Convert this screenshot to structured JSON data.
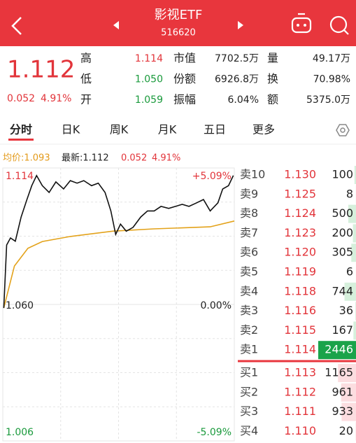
{
  "header": {
    "title": "影视ETF",
    "code": "516620"
  },
  "quote": {
    "price": "1.112",
    "change": "0.052",
    "change_pct": "4.91%",
    "stats": [
      {
        "label": "高",
        "value": "1.114"
      },
      {
        "label": "市值",
        "value": "7702.5万"
      },
      {
        "label": "量",
        "value": "49.17万"
      },
      {
        "label": "低",
        "value": "1.050"
      },
      {
        "label": "份额",
        "value": "6926.8万"
      },
      {
        "label": "换",
        "value": "70.98%"
      },
      {
        "label": "开",
        "value": "1.059"
      },
      {
        "label": "振幅",
        "value": "6.04%"
      },
      {
        "label": "额",
        "value": "5375.0万"
      }
    ]
  },
  "tabs": [
    "分时",
    "日K",
    "周K",
    "月K",
    "五日",
    "更多"
  ],
  "info": {
    "avg": "均价:1.093",
    "latest": "最新:1.112",
    "change": "0.052",
    "change_pct": "4.91%"
  },
  "intraday": {
    "type": "line",
    "xlim": [
      0,
      240
    ],
    "ylim": [
      1.006,
      1.114
    ],
    "labels": {
      "top_left": "1.114",
      "top_right": "+5.09%",
      "mid_left": "1.060",
      "mid_right": "0.00%",
      "bottom_left": "1.006",
      "bottom_right": "-5.09%"
    },
    "x": [
      1,
      4,
      8,
      13,
      19,
      25,
      30,
      35,
      41,
      48,
      55,
      63,
      70,
      77,
      84,
      92,
      99,
      106,
      112,
      117,
      122,
      128,
      135,
      143,
      150,
      157,
      164,
      172,
      179,
      186,
      193,
      201,
      208,
      215,
      223,
      228,
      234,
      239
    ],
    "price": [
      1.0586,
      1.0835,
      1.0863,
      1.085,
      1.0946,
      1.1015,
      1.107,
      1.111,
      1.107,
      1.1043,
      1.1085,
      1.1057,
      1.109,
      1.108,
      1.109,
      1.107,
      1.108,
      1.1043,
      1.097,
      1.0877,
      1.0918,
      1.089,
      1.0905,
      1.0946,
      1.097,
      1.097,
      1.0988,
      1.098,
      1.0988,
      1.0996,
      1.0988,
      1.1002,
      1.1015,
      1.097,
      1.1002,
      1.1057,
      1.107,
      1.111
    ],
    "avg_x": [
      1,
      12,
      26,
      41,
      70,
      114,
      157,
      215,
      240
    ],
    "avg": [
      1.0586,
      1.0752,
      1.0822,
      1.0849,
      1.0869,
      1.089,
      1.0899,
      1.0907,
      1.093
    ],
    "price_color": "#111111",
    "avg_color": "#e3a21a"
  },
  "order_book": {
    "asks": [
      {
        "label": "卖10",
        "price": "1.130",
        "volume": 100
      },
      {
        "label": "卖9",
        "price": "1.125",
        "volume": 8
      },
      {
        "label": "卖8",
        "price": "1.124",
        "volume": 500
      },
      {
        "label": "卖7",
        "price": "1.123",
        "volume": 200
      },
      {
        "label": "卖6",
        "price": "1.120",
        "volume": 305
      },
      {
        "label": "卖5",
        "price": "1.119",
        "volume": 6
      },
      {
        "label": "卖4",
        "price": "1.118",
        "volume": 744
      },
      {
        "label": "卖3",
        "price": "1.116",
        "volume": 36
      },
      {
        "label": "卖2",
        "price": "1.115",
        "volume": 167
      },
      {
        "label": "卖1",
        "price": "1.114",
        "volume": 2446
      }
    ],
    "bids": [
      {
        "label": "买1",
        "price": "1.113",
        "volume": 1165
      },
      {
        "label": "买2",
        "price": "1.112",
        "volume": 961
      },
      {
        "label": "买3",
        "price": "1.111",
        "volume": 933
      },
      {
        "label": "买4",
        "price": "1.110",
        "volume": 20
      }
    ]
  }
}
